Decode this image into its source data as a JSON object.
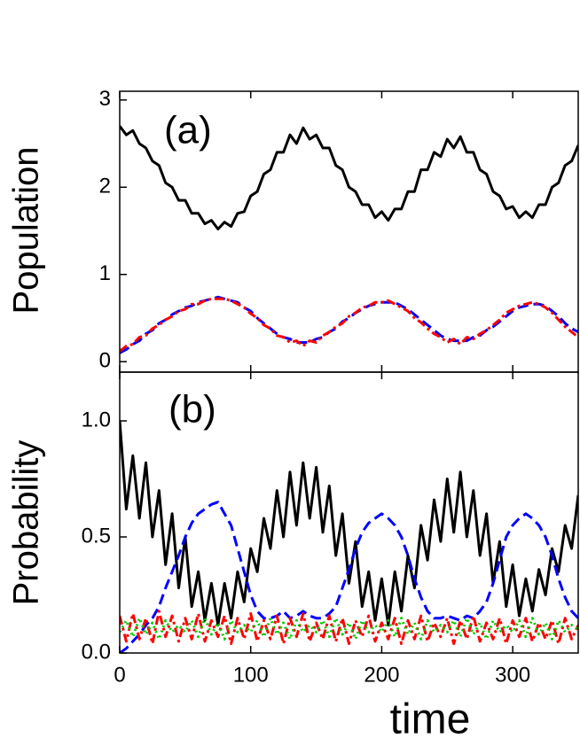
{
  "chart_data": [
    {
      "type": "line",
      "annotation": "(a)",
      "y_label": "Population",
      "x": [
        0,
        5,
        10,
        15,
        20,
        25,
        30,
        35,
        40,
        45,
        50,
        55,
        60,
        65,
        70,
        75,
        80,
        85,
        90,
        95,
        100,
        105,
        110,
        115,
        120,
        125,
        130,
        135,
        140,
        145,
        150,
        155,
        160,
        165,
        170,
        175,
        180,
        185,
        190,
        195,
        200,
        205,
        210,
        215,
        220,
        225,
        230,
        235,
        240,
        245,
        250,
        255,
        260,
        265,
        270,
        275,
        280,
        285,
        290,
        295,
        300,
        305,
        310,
        315,
        320,
        325,
        330,
        335,
        340,
        345,
        350
      ],
      "xlim": [
        0,
        350
      ],
      "xticks": [
        0,
        100,
        200,
        300
      ],
      "ylim": [
        -0.12,
        3.1
      ],
      "yticks": [
        0,
        1,
        2,
        3
      ],
      "series": [
        {
          "color": "#000000",
          "linestyle": "solid",
          "values": [
            2.7,
            2.6,
            2.65,
            2.5,
            2.45,
            2.3,
            2.25,
            2.05,
            2.0,
            1.85,
            1.85,
            1.7,
            1.7,
            1.58,
            1.62,
            1.52,
            1.6,
            1.55,
            1.7,
            1.72,
            1.9,
            1.95,
            2.15,
            2.2,
            2.4,
            2.4,
            2.6,
            2.5,
            2.68,
            2.55,
            2.6,
            2.45,
            2.45,
            2.25,
            2.2,
            2.0,
            1.95,
            1.8,
            1.8,
            1.65,
            1.72,
            1.62,
            1.75,
            1.75,
            1.95,
            1.95,
            2.2,
            2.2,
            2.4,
            2.35,
            2.55,
            2.45,
            2.58,
            2.4,
            2.4,
            2.2,
            2.15,
            1.95,
            1.9,
            1.75,
            1.78,
            1.65,
            1.72,
            1.65,
            1.8,
            1.8,
            2.0,
            2.05,
            2.25,
            2.3,
            2.48
          ]
        },
        {
          "color": "#0000ff",
          "linestyle": "dashed",
          "values": [
            0.1,
            0.14,
            0.2,
            0.24,
            0.32,
            0.36,
            0.44,
            0.48,
            0.54,
            0.58,
            0.62,
            0.64,
            0.68,
            0.7,
            0.72,
            0.74,
            0.72,
            0.7,
            0.68,
            0.62,
            0.58,
            0.5,
            0.44,
            0.38,
            0.32,
            0.28,
            0.26,
            0.22,
            0.22,
            0.22,
            0.26,
            0.28,
            0.34,
            0.38,
            0.46,
            0.5,
            0.56,
            0.6,
            0.64,
            0.66,
            0.68,
            0.68,
            0.68,
            0.64,
            0.6,
            0.54,
            0.48,
            0.42,
            0.36,
            0.3,
            0.26,
            0.24,
            0.24,
            0.24,
            0.28,
            0.3,
            0.36,
            0.4,
            0.46,
            0.52,
            0.58,
            0.62,
            0.64,
            0.66,
            0.66,
            0.64,
            0.58,
            0.52,
            0.44,
            0.38,
            0.34
          ]
        },
        {
          "color": "#ff0000",
          "linestyle": "dashdot",
          "values": [
            0.12,
            0.18,
            0.2,
            0.28,
            0.3,
            0.38,
            0.42,
            0.48,
            0.52,
            0.58,
            0.6,
            0.66,
            0.66,
            0.7,
            0.72,
            0.72,
            0.72,
            0.7,
            0.66,
            0.62,
            0.55,
            0.5,
            0.42,
            0.38,
            0.3,
            0.28,
            0.22,
            0.24,
            0.18,
            0.24,
            0.22,
            0.3,
            0.34,
            0.4,
            0.44,
            0.52,
            0.56,
            0.62,
            0.64,
            0.68,
            0.68,
            0.7,
            0.66,
            0.62,
            0.58,
            0.5,
            0.45,
            0.38,
            0.32,
            0.28,
            0.22,
            0.26,
            0.2,
            0.28,
            0.26,
            0.32,
            0.36,
            0.42,
            0.48,
            0.56,
            0.6,
            0.64,
            0.66,
            0.68,
            0.66,
            0.62,
            0.56,
            0.48,
            0.4,
            0.34,
            0.28
          ]
        }
      ]
    },
    {
      "type": "line",
      "annotation": "(b)",
      "y_label": "Probability",
      "x_label": "time",
      "x": [
        0,
        5,
        10,
        15,
        20,
        25,
        30,
        35,
        40,
        45,
        50,
        55,
        60,
        65,
        70,
        75,
        80,
        85,
        90,
        95,
        100,
        105,
        110,
        115,
        120,
        125,
        130,
        135,
        140,
        145,
        150,
        155,
        160,
        165,
        170,
        175,
        180,
        185,
        190,
        195,
        200,
        205,
        210,
        215,
        220,
        225,
        230,
        235,
        240,
        245,
        250,
        255,
        260,
        265,
        270,
        275,
        280,
        285,
        290,
        295,
        300,
        305,
        310,
        315,
        320,
        325,
        330,
        335,
        340,
        345,
        350
      ],
      "xlim": [
        0,
        350
      ],
      "xticks": [
        0,
        100,
        200,
        300
      ],
      "ylim": [
        0,
        1.21
      ],
      "yticks": [
        {
          "value": 0,
          "label": "0.0"
        },
        {
          "value": 0.5,
          "label": "0.5"
        },
        {
          "value": 1,
          "label": "1.0"
        }
      ],
      "series": [
        {
          "color": "#000000",
          "linestyle": "solid",
          "values": [
            1.0,
            0.62,
            0.85,
            0.58,
            0.82,
            0.5,
            0.7,
            0.38,
            0.6,
            0.28,
            0.5,
            0.2,
            0.35,
            0.14,
            0.3,
            0.12,
            0.3,
            0.15,
            0.35,
            0.22,
            0.45,
            0.35,
            0.58,
            0.45,
            0.7,
            0.5,
            0.78,
            0.55,
            0.82,
            0.58,
            0.8,
            0.52,
            0.72,
            0.42,
            0.6,
            0.3,
            0.48,
            0.2,
            0.35,
            0.14,
            0.32,
            0.12,
            0.35,
            0.18,
            0.42,
            0.28,
            0.55,
            0.4,
            0.66,
            0.48,
            0.75,
            0.52,
            0.78,
            0.5,
            0.7,
            0.42,
            0.6,
            0.3,
            0.48,
            0.2,
            0.38,
            0.16,
            0.32,
            0.18,
            0.36,
            0.25,
            0.45,
            0.35,
            0.55,
            0.45,
            0.68
          ]
        },
        {
          "color": "#0000ff",
          "linestyle": "dashed",
          "values": [
            0,
            0.02,
            0.05,
            0.08,
            0.12,
            0.15,
            0.2,
            0.28,
            0.35,
            0.42,
            0.5,
            0.56,
            0.6,
            0.62,
            0.64,
            0.65,
            0.6,
            0.55,
            0.45,
            0.35,
            0.25,
            0.18,
            0.15,
            0.15,
            0.16,
            0.18,
            0.15,
            0.16,
            0.18,
            0.16,
            0.15,
            0.15,
            0.17,
            0.2,
            0.28,
            0.36,
            0.45,
            0.52,
            0.56,
            0.58,
            0.6,
            0.58,
            0.55,
            0.5,
            0.42,
            0.32,
            0.24,
            0.18,
            0.15,
            0.15,
            0.16,
            0.15,
            0.14,
            0.16,
            0.15,
            0.18,
            0.22,
            0.3,
            0.4,
            0.5,
            0.55,
            0.58,
            0.6,
            0.58,
            0.55,
            0.5,
            0.42,
            0.32,
            0.24,
            0.18,
            0.15
          ]
        },
        {
          "color": "#ff0000",
          "linestyle": "dashdot",
          "values": [
            0.16,
            0.05,
            0.17,
            0.06,
            0.15,
            0.04,
            0.18,
            0.07,
            0.16,
            0.05,
            0.15,
            0.06,
            0.17,
            0.05,
            0.14,
            0.07,
            0.16,
            0.04,
            0.15,
            0.06,
            0.17,
            0.05,
            0.14,
            0.06,
            0.16,
            0.04,
            0.15,
            0.07,
            0.17,
            0.05,
            0.13,
            0.06,
            0.16,
            0.05,
            0.15,
            0.04,
            0.14,
            0.07,
            0.16,
            0.05,
            0.13,
            0.06,
            0.15,
            0.04,
            0.14,
            0.06,
            0.16,
            0.05,
            0.13,
            0.07,
            0.15,
            0.04,
            0.14,
            0.06,
            0.16,
            0.05,
            0.13,
            0.06,
            0.15,
            0.04,
            0.14,
            0.07,
            0.15,
            0.05,
            0.13,
            0.06,
            0.14,
            0.04,
            0.15,
            0.06,
            0.12
          ]
        },
        {
          "color": "#00cc00",
          "linestyle": "dotted",
          "values": [
            0.09,
            0.14,
            0.07,
            0.15,
            0.08,
            0.13,
            0.06,
            0.14,
            0.09,
            0.12,
            0.09,
            0.14,
            0.07,
            0.15,
            0.08,
            0.13,
            0.06,
            0.14,
            0.09,
            0.12,
            0.09,
            0.14,
            0.07,
            0.15,
            0.08,
            0.13,
            0.06,
            0.14,
            0.09,
            0.12,
            0.09,
            0.14,
            0.07,
            0.15,
            0.08,
            0.13,
            0.06,
            0.14,
            0.09,
            0.12,
            0.09,
            0.14,
            0.07,
            0.15,
            0.08,
            0.13,
            0.06,
            0.14,
            0.09,
            0.12,
            0.09,
            0.14,
            0.07,
            0.15,
            0.08,
            0.13,
            0.06,
            0.14,
            0.09,
            0.12,
            0.09,
            0.14,
            0.07,
            0.15,
            0.08,
            0.13,
            0.06,
            0.14,
            0.09,
            0.12,
            0.1
          ]
        }
      ]
    }
  ]
}
